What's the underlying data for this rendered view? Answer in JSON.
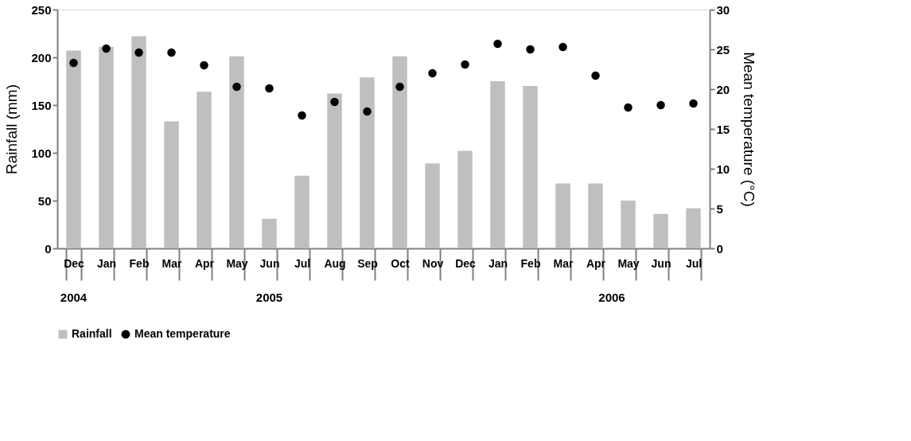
{
  "chart_data": {
    "type": "bar",
    "categories": [
      "Dec",
      "Jan",
      "Feb",
      "Mar",
      "Apr",
      "May",
      "Jun",
      "Jul",
      "Aug",
      "Sep",
      "Oct",
      "Nov",
      "Dec",
      "Jan",
      "Feb",
      "Mar",
      "Apr",
      "May",
      "Jun",
      "Jul"
    ],
    "series": [
      {
        "name": "Rainfall",
        "color": "#bfbfbf",
        "values": [
          207,
          211,
          222,
          133,
          164,
          201,
          31,
          76,
          162,
          179,
          201,
          89,
          102,
          175,
          170,
          68,
          68,
          50,
          36,
          42
        ]
      },
      {
        "name": "Mean temperature",
        "type": "scatter",
        "axis": "y2",
        "color": "#000000",
        "marker": "circle",
        "values": [
          23.3,
          25.1,
          24.6,
          24.6,
          23.0,
          20.3,
          20.1,
          16.7,
          18.4,
          17.2,
          20.3,
          22.0,
          23.1,
          25.7,
          25.0,
          25.3,
          21.7,
          17.7,
          18.0,
          18.2
        ]
      }
    ],
    "ylabel": "Rainfall (mm)",
    "y2label": "Mean temperature (°C)",
    "ylim": [
      0,
      250
    ],
    "yticks": [
      0,
      50,
      100,
      150,
      200,
      250
    ],
    "y2lim": [
      0,
      30
    ],
    "y2ticks": [
      0,
      5,
      10,
      15,
      20,
      25,
      30
    ],
    "annotations": [
      "2004",
      "2005",
      "2006"
    ],
    "grid": false,
    "legend": "bottom"
  }
}
